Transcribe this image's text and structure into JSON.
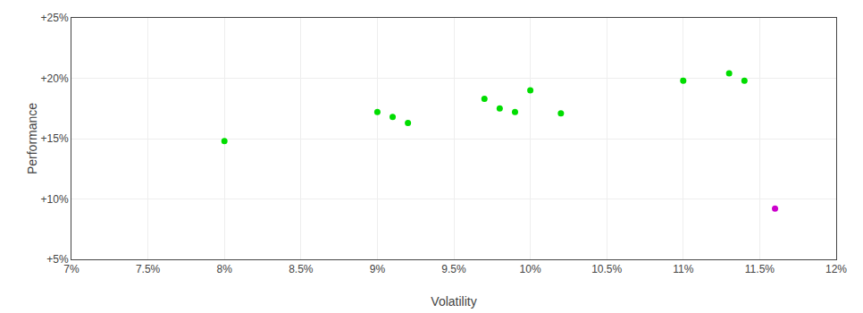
{
  "chart_data": {
    "type": "scatter",
    "xlabel": "Volatility",
    "ylabel": "Performance",
    "xlim": [
      0.07,
      0.12
    ],
    "ylim": [
      0.05,
      0.25
    ],
    "xticks": [
      {
        "value": 0.07,
        "label": "7%"
      },
      {
        "value": 0.075,
        "label": "7.5%"
      },
      {
        "value": 0.08,
        "label": "8%"
      },
      {
        "value": 0.085,
        "label": "8.5%"
      },
      {
        "value": 0.09,
        "label": "9%"
      },
      {
        "value": 0.095,
        "label": "9.5%"
      },
      {
        "value": 0.1,
        "label": "10%"
      },
      {
        "value": 0.105,
        "label": "10.5%"
      },
      {
        "value": 0.11,
        "label": "11%"
      },
      {
        "value": 0.115,
        "label": "11.5%"
      },
      {
        "value": 0.12,
        "label": "12%"
      }
    ],
    "yticks": [
      {
        "value": 0.05,
        "label": "+5%"
      },
      {
        "value": 0.1,
        "label": "+10%"
      },
      {
        "value": 0.15,
        "label": "+15%"
      },
      {
        "value": 0.2,
        "label": "+20%"
      },
      {
        "value": 0.25,
        "label": "+25%"
      }
    ],
    "grid": true,
    "series": [
      {
        "color": "#00dd00",
        "x": [
          0.08,
          0.09,
          0.091,
          0.092,
          0.097,
          0.098,
          0.099,
          0.1,
          0.102,
          0.11,
          0.113,
          0.114
        ],
        "values": [
          0.148,
          0.172,
          0.168,
          0.163,
          0.183,
          0.175,
          0.172,
          0.19,
          0.171,
          0.198,
          0.204,
          0.198
        ]
      },
      {
        "color": "#cc00cc",
        "x": [
          0.116
        ],
        "values": [
          0.092
        ]
      }
    ]
  }
}
